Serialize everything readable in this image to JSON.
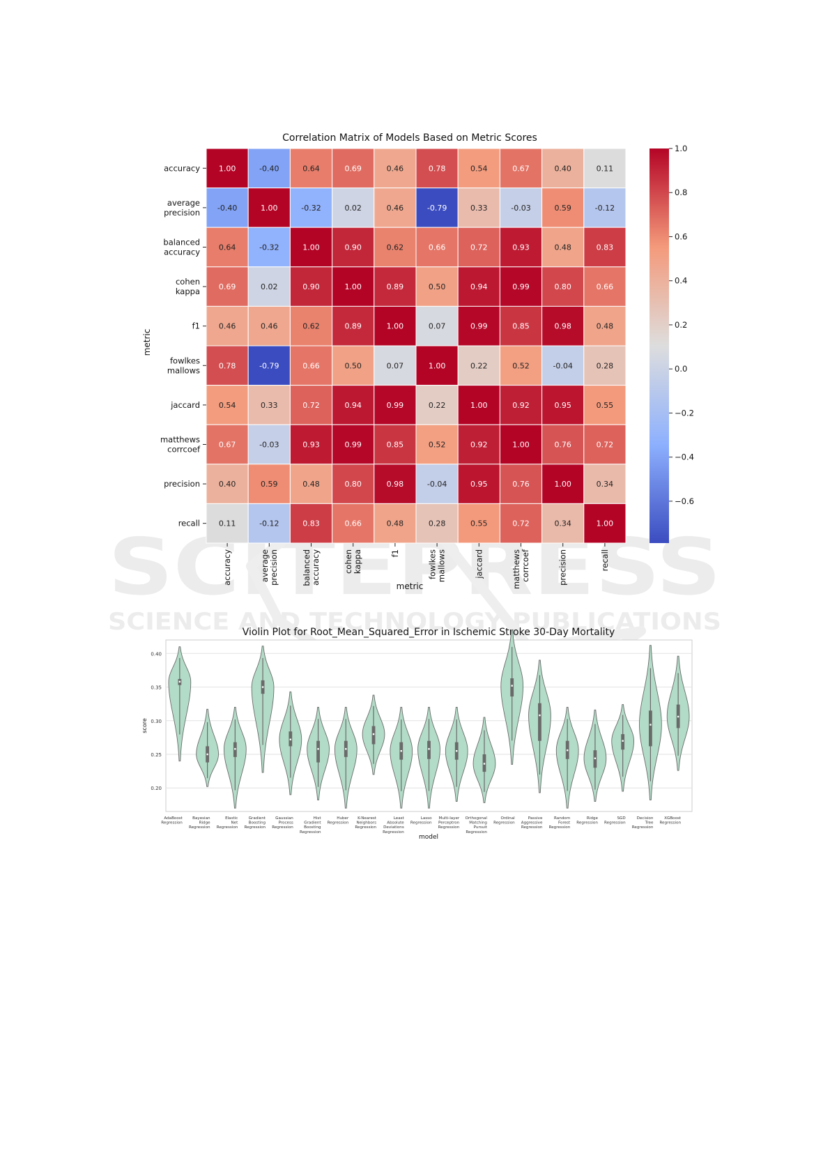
{
  "watermark": {
    "main": "SCITEPRESS",
    "sub": "SCIENCE AND TECHNOLOGY PUBLICATIONS"
  },
  "chart_data": [
    {
      "type": "heatmap",
      "title": "Correlation Matrix of Models Based on Metric Scores",
      "xlabel": "metric",
      "ylabel": "metric",
      "labels": [
        [
          "accuracy"
        ],
        [
          "average",
          "precision"
        ],
        [
          "balanced",
          "accuracy"
        ],
        [
          "cohen",
          "kappa"
        ],
        [
          "f1"
        ],
        [
          "fowlkes",
          "mallows"
        ],
        [
          "jaccard"
        ],
        [
          "matthews",
          "corrcoef"
        ],
        [
          "precision"
        ],
        [
          "recall"
        ]
      ],
      "values": [
        [
          1.0,
          -0.4,
          0.64,
          0.69,
          0.46,
          0.78,
          0.54,
          0.67,
          0.4,
          0.11
        ],
        [
          -0.4,
          1.0,
          -0.32,
          0.02,
          0.46,
          -0.79,
          0.33,
          -0.03,
          0.59,
          -0.12
        ],
        [
          0.64,
          -0.32,
          1.0,
          0.9,
          0.62,
          0.66,
          0.72,
          0.93,
          0.48,
          0.83
        ],
        [
          0.69,
          0.02,
          0.9,
          1.0,
          0.89,
          0.5,
          0.94,
          0.99,
          0.8,
          0.66
        ],
        [
          0.46,
          0.46,
          0.62,
          0.89,
          1.0,
          0.07,
          0.99,
          0.85,
          0.98,
          0.48
        ],
        [
          0.78,
          -0.79,
          0.66,
          0.5,
          0.07,
          1.0,
          0.22,
          0.52,
          -0.04,
          0.28
        ],
        [
          0.54,
          0.33,
          0.72,
          0.94,
          0.99,
          0.22,
          1.0,
          0.92,
          0.95,
          0.55
        ],
        [
          0.67,
          -0.03,
          0.93,
          0.99,
          0.85,
          0.52,
          0.92,
          1.0,
          0.76,
          0.72
        ],
        [
          0.4,
          0.59,
          0.48,
          0.8,
          0.98,
          -0.04,
          0.95,
          0.76,
          1.0,
          0.34
        ],
        [
          0.11,
          -0.12,
          0.83,
          0.66,
          0.48,
          0.28,
          0.55,
          0.72,
          0.34,
          1.0
        ]
      ],
      "colorbar": {
        "colormap": "coolwarm",
        "range": [
          -0.79,
          1.0
        ],
        "ticks": [
          "1.0",
          "0.8",
          "0.6",
          "0.4",
          "0.2",
          "0.0",
          "−0.2",
          "−0.4",
          "−0.6"
        ]
      }
    },
    {
      "type": "violin",
      "title": "Violin Plot for Root_Mean_Squared_Error in Ischemic Stroke 30-Day Mortality",
      "xlabel": "model",
      "ylabel": "score",
      "ylim": [
        0.165,
        0.42
      ],
      "yticks": [
        "0.40",
        "0.35",
        "0.30",
        "0.25",
        "0.20"
      ],
      "grid": true,
      "fill_color": "#b2dcc7",
      "models": [
        {
          "label": [
            "AdaBoost",
            "Regression"
          ],
          "min": 0.24,
          "max": 0.41,
          "median": 0.358,
          "q1": 0.353,
          "q3": 0.362
        },
        {
          "label": [
            "Bayesian",
            "Ridge",
            "Regression"
          ],
          "min": 0.202,
          "max": 0.317,
          "median": 0.25,
          "q1": 0.238,
          "q3": 0.262
        },
        {
          "label": [
            "Elastic",
            "Net",
            "Regression"
          ],
          "min": 0.17,
          "max": 0.32,
          "median": 0.258,
          "q1": 0.246,
          "q3": 0.268
        },
        {
          "label": [
            "Gradient",
            "Boosting",
            "Regression"
          ],
          "min": 0.223,
          "max": 0.411,
          "median": 0.35,
          "q1": 0.34,
          "q3": 0.36
        },
        {
          "label": [
            "Gaussian",
            "Process",
            "Regression"
          ],
          "min": 0.19,
          "max": 0.343,
          "median": 0.272,
          "q1": 0.262,
          "q3": 0.284
        },
        {
          "label": [
            "Hist",
            "Gradient",
            "Boosting",
            "Regression"
          ],
          "min": 0.182,
          "max": 0.32,
          "median": 0.258,
          "q1": 0.238,
          "q3": 0.27
        },
        {
          "label": [
            "Huber",
            "Regression"
          ],
          "min": 0.17,
          "max": 0.32,
          "median": 0.258,
          "q1": 0.246,
          "q3": 0.27
        },
        {
          "label": [
            "K-Nearest",
            "Neighbors",
            "Regression"
          ],
          "min": 0.22,
          "max": 0.338,
          "median": 0.28,
          "q1": 0.265,
          "q3": 0.292
        },
        {
          "label": [
            "Least",
            "Absolute",
            "Deviations",
            "Regression"
          ],
          "min": 0.17,
          "max": 0.32,
          "median": 0.255,
          "q1": 0.242,
          "q3": 0.268
        },
        {
          "label": [
            "Lasso",
            "Regression"
          ],
          "min": 0.17,
          "max": 0.32,
          "median": 0.258,
          "q1": 0.243,
          "q3": 0.27
        },
        {
          "label": [
            "Multi-layer",
            "Perceptron",
            "Regression"
          ],
          "min": 0.18,
          "max": 0.32,
          "median": 0.255,
          "q1": 0.242,
          "q3": 0.268
        },
        {
          "label": [
            "Orthogonal",
            "Matching",
            "Pursuit",
            "Regression"
          ],
          "min": 0.178,
          "max": 0.305,
          "median": 0.236,
          "q1": 0.224,
          "q3": 0.25
        },
        {
          "label": [
            "Ordinal",
            "Regression"
          ],
          "min": 0.235,
          "max": 0.435,
          "median": 0.352,
          "q1": 0.336,
          "q3": 0.363
        },
        {
          "label": [
            "Passive",
            "Aggressive",
            "Regression"
          ],
          "min": 0.193,
          "max": 0.39,
          "median": 0.308,
          "q1": 0.27,
          "q3": 0.326
        },
        {
          "label": [
            "Random",
            "Forest",
            "Regression"
          ],
          "min": 0.17,
          "max": 0.32,
          "median": 0.256,
          "q1": 0.243,
          "q3": 0.27
        },
        {
          "label": [
            "Ridge",
            "Regression"
          ],
          "min": 0.18,
          "max": 0.316,
          "median": 0.244,
          "q1": 0.23,
          "q3": 0.256
        },
        {
          "label": [
            "SGD",
            "Regression"
          ],
          "min": 0.195,
          "max": 0.324,
          "median": 0.27,
          "q1": 0.257,
          "q3": 0.28
        },
        {
          "label": [
            "Decision",
            "Tree",
            "Regression"
          ],
          "min": 0.182,
          "max": 0.412,
          "median": 0.294,
          "q1": 0.262,
          "q3": 0.315
        },
        {
          "label": [
            "XGBoost",
            "Regression"
          ],
          "min": 0.226,
          "max": 0.396,
          "median": 0.306,
          "q1": 0.289,
          "q3": 0.324
        }
      ]
    }
  ]
}
